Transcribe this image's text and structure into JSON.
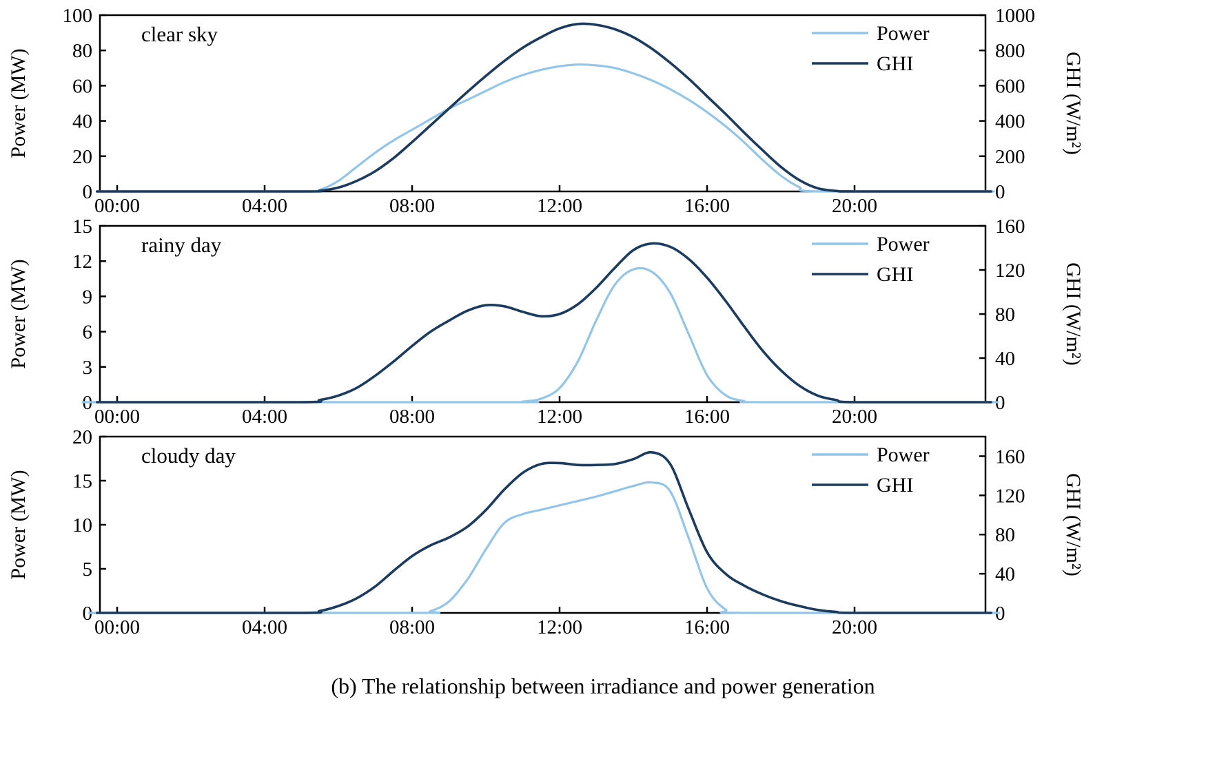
{
  "caption": "(b) The relationship between irradiance and power generation",
  "colors": {
    "power": "#92c5e8",
    "ghi": "#1b3b5f",
    "axis": "#000000"
  },
  "chart_data": [
    {
      "type": "line",
      "title": "clear sky",
      "legend_position": "top-right",
      "x_axis": {
        "range_hours": [
          0,
          23.5
        ],
        "ticks": [
          0,
          4,
          8,
          12,
          16,
          20
        ],
        "tick_labels": [
          "00:00",
          "04:00",
          "08:00",
          "12:00",
          "16:00",
          "20:00"
        ]
      },
      "left_axis": {
        "label": "Power (MW)",
        "range": [
          0,
          100
        ],
        "ticks": [
          0,
          20,
          40,
          60,
          80,
          100
        ]
      },
      "right_axis": {
        "label": "GHI (W/m²)",
        "range": [
          0,
          1000
        ],
        "ticks": [
          0,
          200,
          400,
          600,
          800,
          1000
        ]
      },
      "series": [
        {
          "name": "Power",
          "axis": "left",
          "color_key": "power",
          "points": [
            [
              0,
              0
            ],
            [
              5,
              0
            ],
            [
              5.5,
              1
            ],
            [
              6,
              6
            ],
            [
              6.5,
              14
            ],
            [
              7,
              22
            ],
            [
              7.5,
              29
            ],
            [
              8,
              35
            ],
            [
              8.5,
              41
            ],
            [
              9,
              47
            ],
            [
              9.5,
              52
            ],
            [
              10,
              57
            ],
            [
              10.5,
              62
            ],
            [
              11,
              66
            ],
            [
              11.5,
              69
            ],
            [
              12,
              71
            ],
            [
              12.5,
              72
            ],
            [
              13,
              71.5
            ],
            [
              13.5,
              70
            ],
            [
              14,
              67
            ],
            [
              14.5,
              63
            ],
            [
              15,
              58
            ],
            [
              15.5,
              52
            ],
            [
              16,
              45
            ],
            [
              16.5,
              37
            ],
            [
              17,
              28
            ],
            [
              17.5,
              18
            ],
            [
              18,
              9
            ],
            [
              18.5,
              2.5
            ],
            [
              19,
              0
            ],
            [
              23.4,
              0
            ]
          ]
        },
        {
          "name": "GHI",
          "axis": "right",
          "color_key": "ghi",
          "points": [
            [
              0,
              0
            ],
            [
              5,
              0
            ],
            [
              5.5,
              4
            ],
            [
              6,
              22
            ],
            [
              6.5,
              60
            ],
            [
              7,
              115
            ],
            [
              7.5,
              190
            ],
            [
              8,
              280
            ],
            [
              8.5,
              375
            ],
            [
              9,
              470
            ],
            [
              9.5,
              565
            ],
            [
              10,
              655
            ],
            [
              10.5,
              740
            ],
            [
              11,
              815
            ],
            [
              11.5,
              875
            ],
            [
              12,
              925
            ],
            [
              12.5,
              950
            ],
            [
              13,
              945
            ],
            [
              13.5,
              920
            ],
            [
              14,
              875
            ],
            [
              14.5,
              810
            ],
            [
              15,
              730
            ],
            [
              15.5,
              640
            ],
            [
              16,
              540
            ],
            [
              16.5,
              440
            ],
            [
              17,
              335
            ],
            [
              17.5,
              235
            ],
            [
              18,
              140
            ],
            [
              18.5,
              65
            ],
            [
              19,
              18
            ],
            [
              19.5,
              3
            ],
            [
              20,
              0
            ],
            [
              23.4,
              0
            ]
          ]
        }
      ]
    },
    {
      "type": "line",
      "title": "rainy day",
      "legend_position": "top-right",
      "x_axis": {
        "range_hours": [
          0,
          23.5
        ],
        "ticks": [
          0,
          4,
          8,
          12,
          16,
          20
        ],
        "tick_labels": [
          "00:00",
          "04:00",
          "08:00",
          "12:00",
          "16:00",
          "20:00"
        ]
      },
      "left_axis": {
        "label": "Power (MW)",
        "range": [
          0,
          15
        ],
        "ticks": [
          0,
          3,
          6,
          9,
          12,
          15
        ]
      },
      "right_axis": {
        "label": "GHI (W/m²)",
        "range": [
          0,
          160
        ],
        "ticks": [
          0,
          40,
          80,
          120,
          160
        ]
      },
      "series": [
        {
          "name": "Power",
          "axis": "left",
          "color_key": "power",
          "points": [
            [
              0,
              0
            ],
            [
              10.5,
              0
            ],
            [
              11,
              0.05
            ],
            [
              11.5,
              0.3
            ],
            [
              12,
              1.2
            ],
            [
              12.5,
              3.5
            ],
            [
              13,
              7
            ],
            [
              13.5,
              10
            ],
            [
              14,
              11.3
            ],
            [
              14.5,
              11.1
            ],
            [
              15,
              9.3
            ],
            [
              15.5,
              5.8
            ],
            [
              16,
              2.3
            ],
            [
              16.5,
              0.6
            ],
            [
              17,
              0.1
            ],
            [
              17.5,
              0
            ],
            [
              23.4,
              0
            ]
          ]
        },
        {
          "name": "GHI",
          "axis": "right",
          "color_key": "ghi",
          "points": [
            [
              0,
              0
            ],
            [
              5,
              0
            ],
            [
              5.5,
              2
            ],
            [
              6,
              6
            ],
            [
              6.5,
              13
            ],
            [
              7,
              24
            ],
            [
              7.5,
              37
            ],
            [
              8,
              51
            ],
            [
              8.5,
              64
            ],
            [
              9,
              74
            ],
            [
              9.5,
              83
            ],
            [
              10,
              88
            ],
            [
              10.5,
              87
            ],
            [
              11,
              82
            ],
            [
              11.5,
              78
            ],
            [
              12,
              80
            ],
            [
              12.5,
              89
            ],
            [
              13,
              104
            ],
            [
              13.5,
              122
            ],
            [
              14,
              138
            ],
            [
              14.5,
              144
            ],
            [
              15,
              141
            ],
            [
              15.5,
              130
            ],
            [
              16,
              113
            ],
            [
              16.5,
              92
            ],
            [
              17,
              69
            ],
            [
              17.5,
              47
            ],
            [
              18,
              29
            ],
            [
              18.5,
              15
            ],
            [
              19,
              6
            ],
            [
              19.5,
              2
            ],
            [
              20,
              0
            ],
            [
              23.4,
              0
            ]
          ]
        }
      ]
    },
    {
      "type": "line",
      "title": "cloudy day",
      "legend_position": "top-right",
      "x_axis": {
        "range_hours": [
          0,
          23.5
        ],
        "ticks": [
          0,
          4,
          8,
          12,
          16,
          20
        ],
        "tick_labels": [
          "00:00",
          "04:00",
          "08:00",
          "12:00",
          "16:00",
          "20:00"
        ]
      },
      "left_axis": {
        "label": "Power (MW)",
        "range": [
          0,
          20
        ],
        "ticks": [
          0,
          5,
          10,
          15,
          20
        ]
      },
      "right_axis": {
        "label": "GHI (W/m²)",
        "range": [
          0,
          180
        ],
        "ticks": [
          0,
          40,
          80,
          120,
          160
        ]
      },
      "series": [
        {
          "name": "Power",
          "axis": "left",
          "color_key": "power",
          "points": [
            [
              0,
              0
            ],
            [
              8,
              0
            ],
            [
              8.5,
              0.2
            ],
            [
              9,
              1.3
            ],
            [
              9.5,
              3.8
            ],
            [
              10,
              7.2
            ],
            [
              10.5,
              10.2
            ],
            [
              11,
              11.2
            ],
            [
              11.5,
              11.7
            ],
            [
              12,
              12.2
            ],
            [
              12.5,
              12.7
            ],
            [
              13,
              13.2
            ],
            [
              13.5,
              13.8
            ],
            [
              14,
              14.4
            ],
            [
              14.5,
              14.8
            ],
            [
              15,
              13.8
            ],
            [
              15.5,
              8.5
            ],
            [
              16,
              2.8
            ],
            [
              16.5,
              0.4
            ],
            [
              17,
              0
            ],
            [
              23.4,
              0
            ]
          ]
        },
        {
          "name": "GHI",
          "axis": "right",
          "color_key": "ghi",
          "points": [
            [
              0,
              0
            ],
            [
              5,
              0
            ],
            [
              5.5,
              2
            ],
            [
              6,
              7
            ],
            [
              6.5,
              15
            ],
            [
              7,
              27
            ],
            [
              7.5,
              43
            ],
            [
              8,
              58
            ],
            [
              8.5,
              69
            ],
            [
              9,
              77
            ],
            [
              9.5,
              88
            ],
            [
              10,
              105
            ],
            [
              10.5,
              126
            ],
            [
              11,
              143
            ],
            [
              11.5,
              152
            ],
            [
              12,
              153
            ],
            [
              12.5,
              151
            ],
            [
              13,
              151
            ],
            [
              13.5,
              152
            ],
            [
              14,
              157
            ],
            [
              14.5,
              164
            ],
            [
              15,
              152
            ],
            [
              15.5,
              106
            ],
            [
              16,
              62
            ],
            [
              16.5,
              40
            ],
            [
              17,
              28
            ],
            [
              17.5,
              19
            ],
            [
              18,
              12
            ],
            [
              18.5,
              7
            ],
            [
              19,
              3
            ],
            [
              19.5,
              1
            ],
            [
              20,
              0
            ],
            [
              23.4,
              0
            ]
          ]
        }
      ]
    }
  ]
}
